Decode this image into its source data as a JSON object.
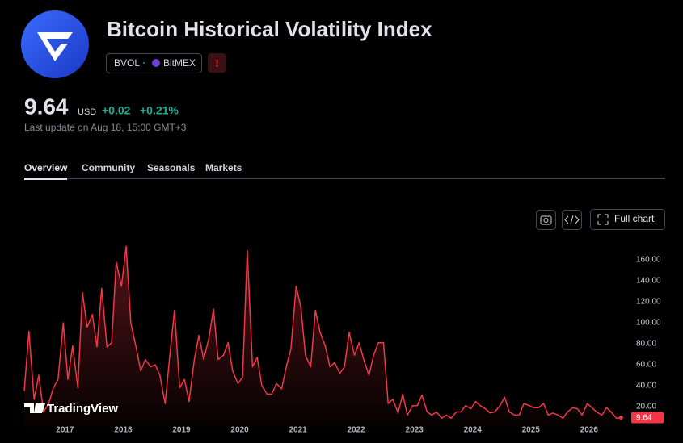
{
  "header": {
    "title": "Bitcoin Historical Volatility Index",
    "symbol": "BVOL",
    "exchange": "BitMEX",
    "alert": "!",
    "price": "9.64",
    "currency": "USD",
    "change": "+0.02",
    "change_percent": "+0.21%",
    "last_update": "Last update on Aug 18, 15:00 GMT+3"
  },
  "tabs": [
    "Overview",
    "Community",
    "Seasonals",
    "Markets"
  ],
  "buttons": {
    "full_chart": "Full chart"
  },
  "watermark": "TradingView",
  "chart_data": {
    "type": "area",
    "color": "#f23645",
    "x": [
      2016.3,
      2016.38,
      2016.47,
      2016.55,
      2016.63,
      2016.72,
      2016.8,
      2016.88,
      2016.97,
      2017.05,
      2017.13,
      2017.22,
      2017.3,
      2017.38,
      2017.47,
      2017.55,
      2017.63,
      2017.72,
      2017.8,
      2017.88,
      2017.97,
      2018.05,
      2018.13,
      2018.22,
      2018.3,
      2018.38,
      2018.47,
      2018.55,
      2018.63,
      2018.72,
      2018.8,
      2018.88,
      2018.97,
      2019.05,
      2019.13,
      2019.22,
      2019.3,
      2019.38,
      2019.47,
      2019.55,
      2019.63,
      2019.72,
      2019.8,
      2019.88,
      2019.97,
      2020.05,
      2020.13,
      2020.22,
      2020.3,
      2020.38,
      2020.47,
      2020.55,
      2020.63,
      2020.72,
      2020.8,
      2020.88,
      2020.97,
      2021.05,
      2021.13,
      2021.22,
      2021.3,
      2021.38,
      2021.47,
      2021.55,
      2021.63,
      2021.72,
      2021.8,
      2021.88,
      2021.97,
      2022.05,
      2022.13,
      2022.22,
      2022.3,
      2022.38,
      2022.47,
      2022.55,
      2022.63,
      2022.72,
      2022.8,
      2022.88,
      2022.97,
      2023.05,
      2023.13,
      2023.22,
      2023.3,
      2023.38,
      2023.47,
      2023.55,
      2023.63,
      2023.72,
      2023.8,
      2023.88,
      2023.97,
      2024.05,
      2024.13,
      2024.22,
      2024.3,
      2024.38,
      2024.47,
      2024.55,
      2024.63,
      2024.72,
      2024.8,
      2024.88,
      2024.97,
      2025.05,
      2025.13,
      2025.22,
      2025.3,
      2025.38,
      2025.47,
      2025.55,
      2025.63,
      2025.72,
      2025.8,
      2025.88,
      2025.97,
      2026.05,
      2026.13,
      2026.22,
      2026.3,
      2026.38,
      2026.47,
      2026.55
    ],
    "values": [
      35,
      92,
      27,
      50,
      15,
      23,
      38,
      46,
      100,
      46,
      78,
      38,
      129,
      96,
      108,
      77,
      133,
      77,
      81,
      158,
      135,
      173,
      100,
      77,
      54,
      65,
      58,
      60,
      50,
      23,
      69,
      112,
      38,
      46,
      25,
      65,
      88,
      65,
      85,
      113,
      65,
      69,
      81,
      54,
      42,
      48,
      169,
      58,
      67,
      40,
      32,
      32,
      42,
      37,
      58,
      75,
      135,
      115,
      69,
      58,
      112,
      91,
      78,
      58,
      62,
      52,
      58,
      91,
      69,
      81,
      65,
      50,
      69,
      81,
      81,
      23,
      27,
      14,
      32,
      12,
      21,
      21,
      31,
      15,
      12,
      15,
      9,
      12,
      9,
      15,
      15,
      21,
      18,
      25,
      21,
      18,
      14,
      15,
      21,
      29,
      15,
      12,
      12,
      23,
      21,
      19,
      19,
      23,
      12,
      14,
      12,
      9,
      15,
      19,
      18,
      12,
      23,
      19,
      15,
      12,
      19,
      15,
      9,
      9.64
    ],
    "xlim": [
      2016.3,
      2026.85
    ],
    "xticks": [
      2017,
      2018,
      2019,
      2020,
      2021,
      2022,
      2023,
      2024,
      2025,
      2026
    ],
    "ylim": [
      0,
      177
    ],
    "yticks": [
      {
        "value": 20,
        "label": "20.00"
      },
      {
        "value": 40,
        "label": "40.00"
      },
      {
        "value": 60,
        "label": "60.00"
      },
      {
        "value": 80,
        "label": "80.00"
      },
      {
        "value": 100,
        "label": "100.00"
      },
      {
        "value": 120,
        "label": "120.00"
      },
      {
        "value": 140,
        "label": "140.00"
      },
      {
        "value": 160,
        "label": "160.00"
      }
    ],
    "grid": false
  }
}
